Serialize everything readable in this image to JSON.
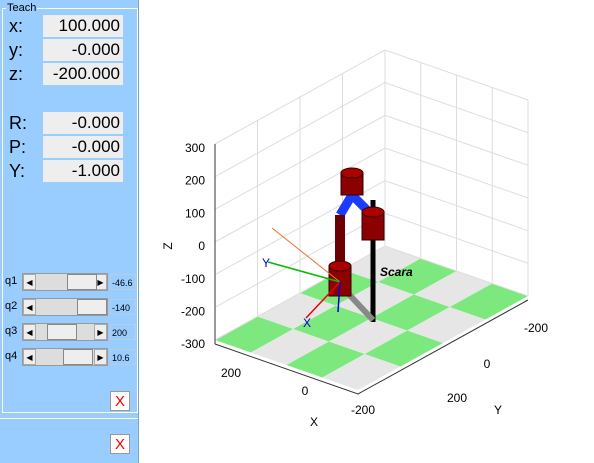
{
  "panel": {
    "title": "Teach",
    "position": [
      {
        "label": "x:",
        "value": "100.000"
      },
      {
        "label": "y:",
        "value": "-0.000"
      },
      {
        "label": "z:",
        "value": "-200.000"
      }
    ],
    "orientation": [
      {
        "label": "R:",
        "value": "-0.000"
      },
      {
        "label": "P:",
        "value": "-0.000"
      },
      {
        "label": "Y:",
        "value": "-1.000"
      }
    ],
    "joints": [
      {
        "label": "q1",
        "value": "-46.6"
      },
      {
        "label": "q2",
        "value": "-140"
      },
      {
        "label": "q3",
        "value": "200"
      },
      {
        "label": "q4",
        "value": "10.6"
      }
    ],
    "close_buttons": [
      "X",
      "X"
    ]
  },
  "plot": {
    "robot_name": "Scara",
    "x_label": "X",
    "y_label": "Y",
    "z_label": "Z",
    "z_ticks": [
      "300",
      "200",
      "100",
      "0",
      "-100",
      "-200",
      "-300"
    ],
    "x_ticks": [
      "200",
      "0",
      "-200"
    ],
    "y_ticks": [
      "-200",
      "0",
      "200"
    ],
    "frame_labels": [
      "X",
      "Y"
    ]
  }
}
